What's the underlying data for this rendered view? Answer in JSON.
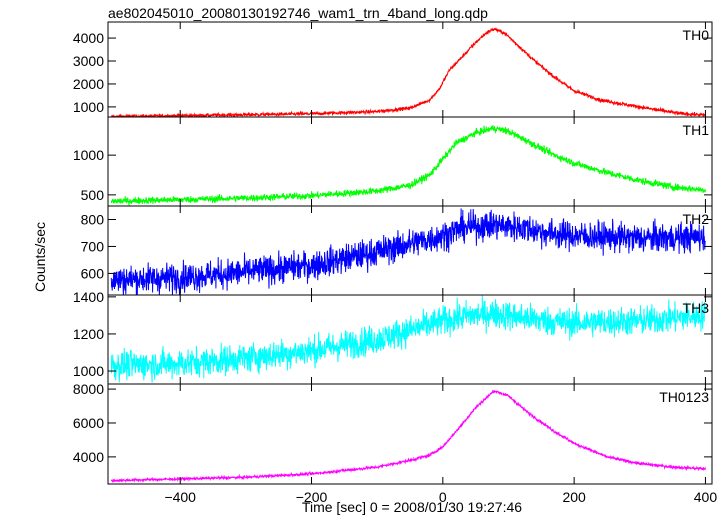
{
  "chart_data": {
    "type": "line",
    "title": "ae802045010_20080130192746_wam1_trn_4band_long.qdp",
    "xlabel": "Time [sec] 0 = 2008/01/30 19:27:46",
    "ylabel": "Counts/sec",
    "xlim": [
      -510,
      410
    ],
    "x_ticks": [
      -400,
      -200,
      0,
      200,
      400
    ],
    "x_tick_labels": [
      "−400",
      "−200",
      "0",
      "200",
      "400"
    ],
    "panels": [
      {
        "name": "TH0",
        "color": "#ff0000",
        "ylim": [
          560,
          4700
        ],
        "y_ticks": [
          1000,
          2000,
          3000,
          4000
        ],
        "y_tick_labels": [
          "1000",
          "2000",
          "3000",
          "4000"
        ],
        "noise": 50,
        "x": [
          -505,
          -400,
          -300,
          -200,
          -100,
          -50,
          -20,
          -5,
          10,
          30,
          50,
          65,
          78,
          95,
          110,
          140,
          170,
          200,
          240,
          280,
          320,
          360,
          400
        ],
        "y": [
          580,
          620,
          660,
          700,
          800,
          950,
          1300,
          1800,
          2600,
          3200,
          3800,
          4200,
          4400,
          4200,
          3800,
          3000,
          2300,
          1700,
          1300,
          1100,
          900,
          720,
          640
        ]
      },
      {
        "name": "TH1",
        "color": "#00ff00",
        "ylim": [
          360,
          1480
        ],
        "y_ticks": [
          500,
          1000
        ],
        "y_tick_labels": [
          "500",
          "1000"
        ],
        "noise": 30,
        "x": [
          -505,
          -400,
          -300,
          -200,
          -100,
          -50,
          -20,
          0,
          20,
          50,
          78,
          100,
          130,
          170,
          200,
          250,
          300,
          350,
          400
        ],
        "y": [
          420,
          440,
          460,
          490,
          550,
          620,
          750,
          950,
          1150,
          1280,
          1340,
          1300,
          1170,
          1000,
          900,
          780,
          680,
          600,
          560
        ]
      },
      {
        "name": "TH2",
        "color": "#0000ff",
        "ylim": [
          520,
          850
        ],
        "y_ticks": [
          600,
          700,
          800
        ],
        "y_tick_labels": [
          "600",
          "700",
          "800"
        ],
        "noise": 38,
        "x": [
          -505,
          -400,
          -300,
          -200,
          -100,
          -50,
          0,
          30,
          78,
          120,
          160,
          200,
          300,
          400
        ],
        "y": [
          575,
          585,
          605,
          630,
          680,
          710,
          740,
          770,
          780,
          770,
          750,
          740,
          730,
          735
        ]
      },
      {
        "name": "TH3",
        "color": "#00ffff",
        "ylim": [
          930,
          1410
        ],
        "y_ticks": [
          1000,
          1200,
          1400
        ],
        "y_tick_labels": [
          "1000",
          "1200",
          "1400"
        ],
        "noise": 55,
        "x": [
          -505,
          -400,
          -300,
          -200,
          -100,
          -50,
          0,
          40,
          78,
          120,
          160,
          200,
          300,
          400
        ],
        "y": [
          1030,
          1040,
          1070,
          1110,
          1170,
          1220,
          1270,
          1300,
          1310,
          1290,
          1270,
          1260,
          1270,
          1300
        ]
      },
      {
        "name": "TH0123",
        "color": "#ff00ff",
        "ylim": [
          2400,
          8300
        ],
        "y_ticks": [
          4000,
          6000,
          8000
        ],
        "y_tick_labels": [
          "4000",
          "6000",
          "8000"
        ],
        "noise": 55,
        "x": [
          -505,
          -400,
          -300,
          -200,
          -100,
          -50,
          -20,
          0,
          20,
          50,
          78,
          100,
          130,
          170,
          200,
          250,
          300,
          350,
          400
        ],
        "y": [
          2600,
          2700,
          2800,
          3000,
          3400,
          3800,
          4100,
          4600,
          5500,
          6900,
          7900,
          7600,
          6600,
          5500,
          4800,
          4000,
          3600,
          3400,
          3300
        ]
      }
    ]
  }
}
